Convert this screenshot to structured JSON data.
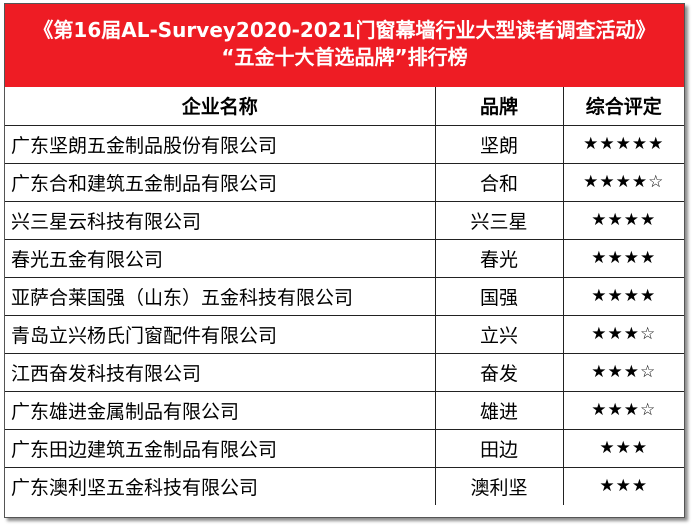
{
  "header": {
    "line1": "《第16届AL-Survey2020-2021门窗幕墙行业大型读者调查活动》",
    "line2": "“五金十大首选品牌”排行榜"
  },
  "columns": {
    "company": "企业名称",
    "brand": "品牌",
    "rating": "综合评定"
  },
  "rows": [
    {
      "company": "广东坚朗五金制品股份有限公司",
      "brand": "坚朗",
      "rating": "★★★★★"
    },
    {
      "company": "广东合和建筑五金制品有限公司",
      "brand": "合和",
      "rating": "★★★★☆"
    },
    {
      "company": "兴三星云科技有限公司",
      "brand": "兴三星",
      "rating": "★★★★"
    },
    {
      "company": "春光五金有限公司",
      "brand": "春光",
      "rating": "★★★★"
    },
    {
      "company": "亚萨合莱国强（山东）五金科技有限公司",
      "brand": "国强",
      "rating": "★★★★"
    },
    {
      "company": "青岛立兴杨氏门窗配件有限公司",
      "brand": "立兴",
      "rating": "★★★☆"
    },
    {
      "company": "江西奋发科技有限公司",
      "brand": "奋发",
      "rating": "★★★☆"
    },
    {
      "company": "广东雄进金属制品有限公司",
      "brand": "雄进",
      "rating": "★★★☆"
    },
    {
      "company": "广东田边建筑五金制品有限公司",
      "brand": "田边",
      "rating": "★★★"
    },
    {
      "company": "广东澳利坚五金科技有限公司",
      "brand": "澳利坚",
      "rating": "★★★"
    }
  ],
  "colors": {
    "header_bg": "#ee1c24",
    "header_text": "#ffffff",
    "border": "#222222"
  }
}
